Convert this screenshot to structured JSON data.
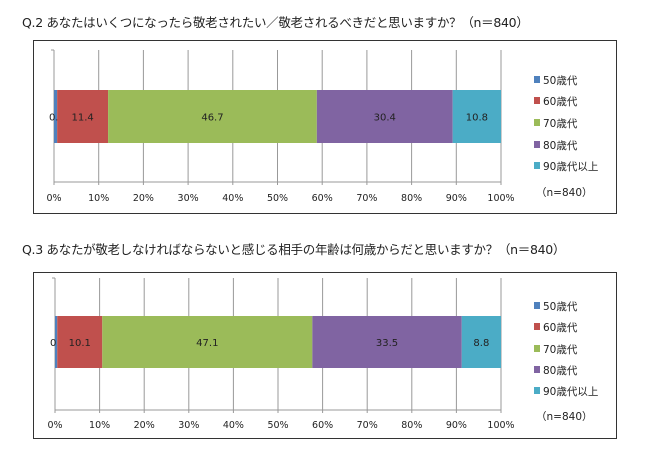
{
  "chart_data": [
    {
      "type": "bar",
      "orientation": "horizontal-stacked-100",
      "title": "Q.2 あなたはいくつになったら敬老されたい／敬老されるべきだと思いますか？（n＝840）",
      "categories": [
        ""
      ],
      "series": [
        {
          "name": "50歳代",
          "values": [
            0.7
          ],
          "color": "#4f81bd"
        },
        {
          "name": "60歳代",
          "values": [
            11.4
          ],
          "color": "#c0504d"
        },
        {
          "name": "70歳代",
          "values": [
            46.7
          ],
          "color": "#9bbb59"
        },
        {
          "name": "80歳代",
          "values": [
            30.4
          ],
          "color": "#8064a2"
        },
        {
          "name": "90歳代以上",
          "values": [
            10.8
          ],
          "color": "#4bacc6"
        }
      ],
      "data_labels": [
        "0.7",
        "11.4",
        "46.7",
        "30.4",
        "10.8"
      ],
      "xlim": [
        0,
        100
      ],
      "x_ticks": [
        "0%",
        "10%",
        "20%",
        "30%",
        "40%",
        "50%",
        "60%",
        "70%",
        "80%",
        "90%",
        "100%"
      ],
      "grid": true,
      "legend": "right",
      "note": "（n=840）"
    },
    {
      "type": "bar",
      "orientation": "horizontal-stacked-100",
      "title": "Q.3 あなたが敬老しなければならないと感じる相手の年齢は何歳からだと思いますか？（n＝840）",
      "categories": [
        ""
      ],
      "series": [
        {
          "name": "50歳代",
          "values": [
            0.5
          ],
          "color": "#4f81bd"
        },
        {
          "name": "60歳代",
          "values": [
            10.1
          ],
          "color": "#c0504d"
        },
        {
          "name": "70歳代",
          "values": [
            47.1
          ],
          "color": "#9bbb59"
        },
        {
          "name": "80歳代",
          "values": [
            33.5
          ],
          "color": "#8064a2"
        },
        {
          "name": "90歳代以上",
          "values": [
            8.8
          ],
          "color": "#4bacc6"
        }
      ],
      "data_labels": [
        "0.5",
        "10.1",
        "47.1",
        "33.5",
        "8.8"
      ],
      "xlim": [
        0,
        100
      ],
      "x_ticks": [
        "0%",
        "10%",
        "20%",
        "30%",
        "40%",
        "50%",
        "60%",
        "70%",
        "80%",
        "90%",
        "100%"
      ],
      "grid": true,
      "legend": "right",
      "note": "（n=840）"
    }
  ]
}
